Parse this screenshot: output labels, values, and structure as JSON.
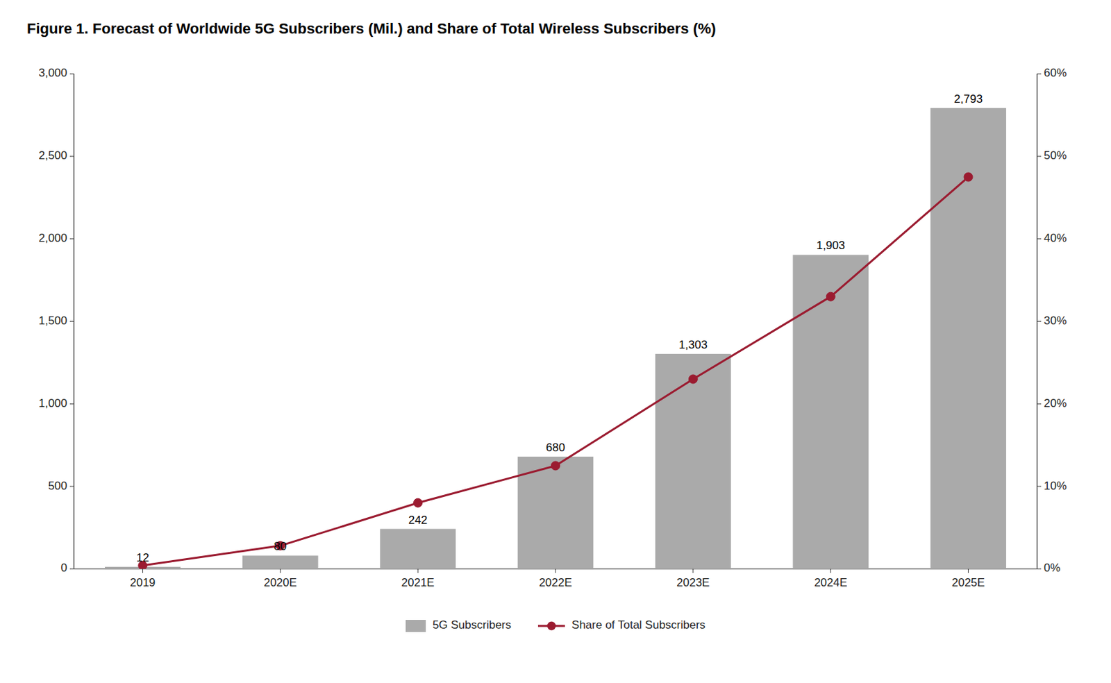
{
  "chart_data": {
    "type": "bar",
    "title": "Figure 1. Forecast of Worldwide 5G Subscribers (Mil.) and Share of Total Wireless Subscribers (%)",
    "categories": [
      "2019",
      "2020E",
      "2021E",
      "2022E",
      "2023E",
      "2024E",
      "2025E"
    ],
    "series": [
      {
        "name": "5G Subscribers",
        "type": "bar",
        "color": "#aaaaaa",
        "values": [
          12,
          80,
          242,
          680,
          1303,
          1903,
          2793
        ],
        "value_labels": [
          "12",
          "80",
          "242",
          "680",
          "1,303",
          "1,903",
          "2,793"
        ]
      },
      {
        "name": "Share of Total Subscribers",
        "type": "line",
        "axis": "y2",
        "color": "#9b1b30",
        "marker": "circle",
        "values": [
          0.4,
          2.8,
          8.0,
          12.5,
          23.0,
          33.0,
          47.5
        ]
      }
    ],
    "ylim": [
      0,
      3000
    ],
    "yticks": [
      0,
      500,
      {
        "value": 1000,
        "label": "1,000"
      },
      {
        "value": 1500,
        "label": "1,500"
      },
      {
        "value": 2000,
        "label": "2,000"
      },
      {
        "value": 2500,
        "label": "2,500"
      },
      {
        "value": 3000,
        "label": "3,000"
      }
    ],
    "y2lim": [
      0,
      60
    ],
    "y2ticks": [
      {
        "value": 0,
        "label": "0%"
      },
      {
        "value": 10,
        "label": "10%"
      },
      {
        "value": 20,
        "label": "20%"
      },
      {
        "value": 30,
        "label": "30%"
      },
      {
        "value": 40,
        "label": "40%"
      },
      {
        "value": 50,
        "label": "50%"
      },
      {
        "value": 60,
        "label": "60%"
      }
    ],
    "data_labels": true,
    "grid": false,
    "legend": "bottom"
  }
}
